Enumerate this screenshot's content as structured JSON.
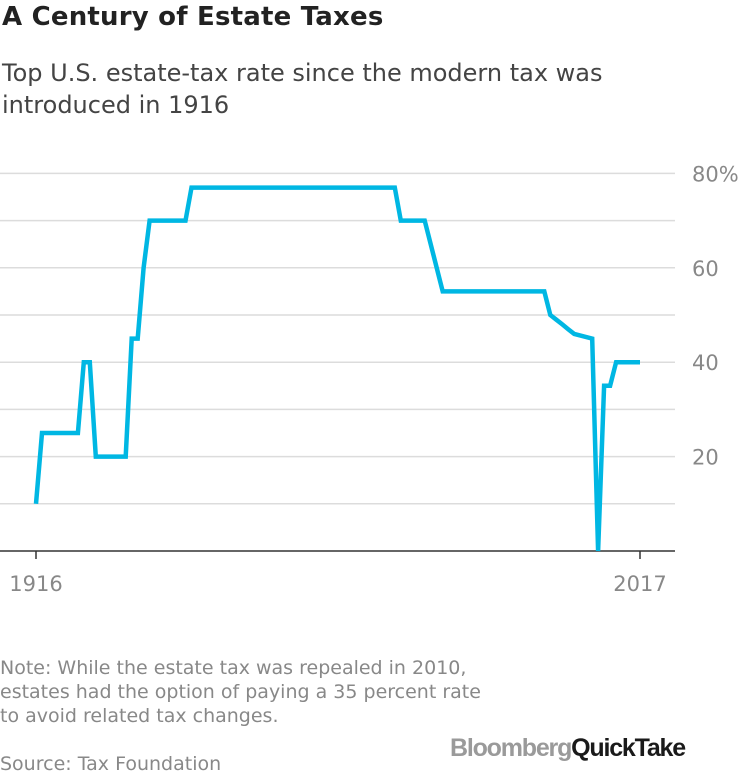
{
  "title": "A Century of Estate Taxes",
  "subtitle": "Top U.S. estate-tax rate since the modern tax was introduced in 1916",
  "note": "Note: While the estate tax was repealed in 2010, estates had the option of paying a 35 percent rate to avoid related tax changes.",
  "source": "Source: Tax Foundation",
  "logo": {
    "bloomberg": "Bloomberg",
    "quicktake": "QuickTake"
  },
  "colors": {
    "line": "#00b7e3",
    "grid": "#dcdcdc",
    "axis": "#333333",
    "tick_text": "#888888"
  },
  "chart_data": {
    "type": "line",
    "title": "A Century of Estate Taxes",
    "subtitle": "Top U.S. estate-tax rate since the modern tax was introduced in 1916",
    "xlabel": "",
    "ylabel": "",
    "xlim": [
      1916,
      2017
    ],
    "ylim": [
      0,
      80
    ],
    "y_ticks": [
      20,
      40,
      60,
      80
    ],
    "y_tick_labels": [
      "20",
      "40",
      "60",
      "80%"
    ],
    "x_ticks": [
      1916,
      2017
    ],
    "x_tick_labels": [
      "1916",
      "2017"
    ],
    "y_axis_position": "right",
    "grid": true,
    "legend": "none",
    "series": [
      {
        "x": [
          1916,
          1917,
          1923,
          1924,
          1925,
          1926,
          1931,
          1932,
          1933,
          1934,
          1935,
          1936,
          1941,
          1942,
          1976,
          1977,
          1981,
          1984,
          1998,
          2001,
          2002,
          2003,
          2004,
          2005,
          2006,
          2009,
          2010,
          2011,
          2012,
          2013,
          2017
        ],
        "y": [
          10,
          25,
          25,
          40,
          40,
          20,
          20,
          45,
          45,
          60,
          70,
          70,
          70,
          77,
          77,
          70,
          70,
          55,
          55,
          55,
          50,
          49,
          48,
          47,
          46,
          45,
          0,
          35,
          35,
          40,
          40
        ]
      }
    ]
  }
}
